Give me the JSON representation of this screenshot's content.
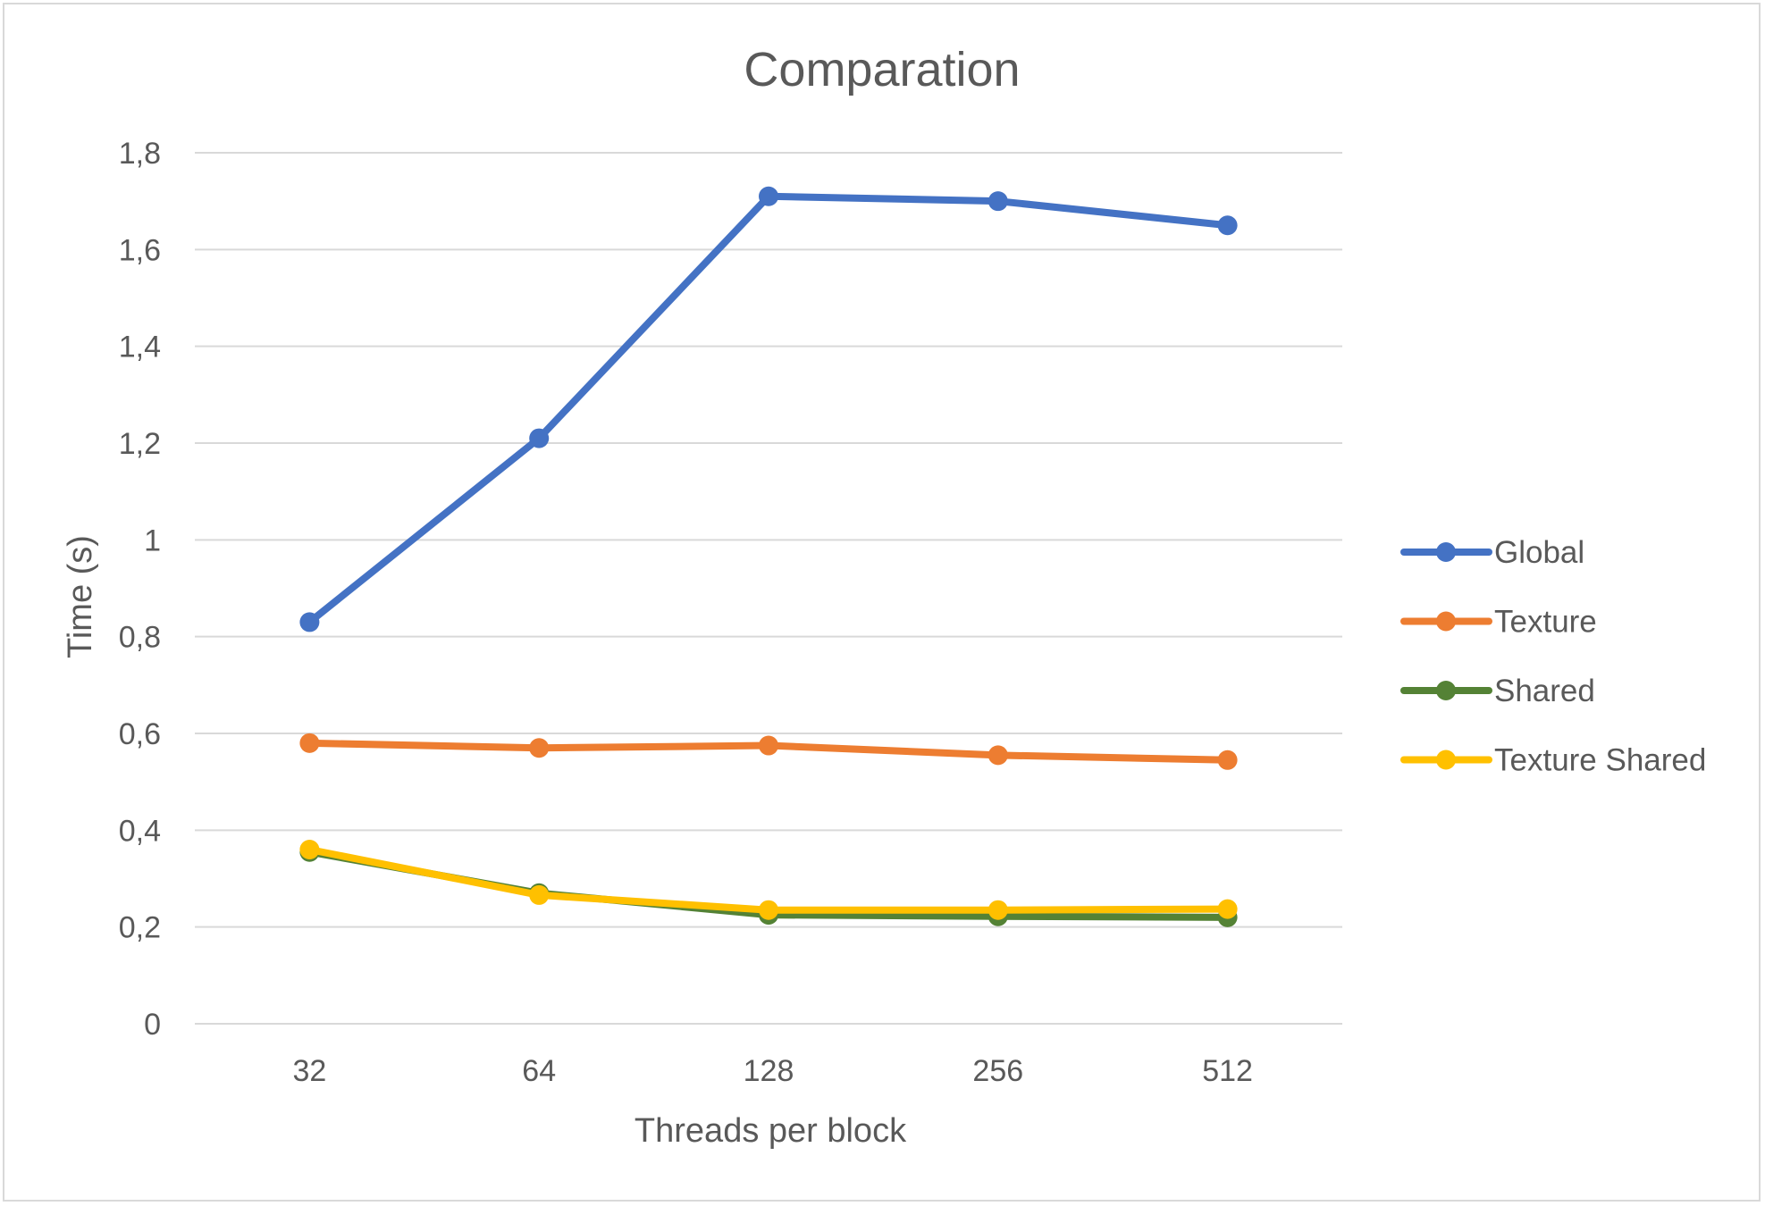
{
  "chart_data": {
    "type": "line",
    "title": "Comparation",
    "xlabel": "Threads per block",
    "ylabel": "Time (s)",
    "categories": [
      "32",
      "64",
      "128",
      "256",
      "512"
    ],
    "y_ticks": [
      "0",
      "0,2",
      "0,4",
      "0,6",
      "0,8",
      "1",
      "1,2",
      "1,4",
      "1,6",
      "1,8"
    ],
    "ylim": [
      0,
      1.8
    ],
    "grid": true,
    "legend_position": "right",
    "series": [
      {
        "name": "Global",
        "color": "#4472c4",
        "values": [
          0.83,
          1.21,
          1.71,
          1.7,
          1.65
        ]
      },
      {
        "name": "Texture",
        "color": "#ed7d31",
        "values": [
          0.58,
          0.57,
          0.575,
          0.555,
          0.545
        ]
      },
      {
        "name": "Shared",
        "color": "#548235",
        "values": [
          0.355,
          0.27,
          0.225,
          0.222,
          0.22
        ]
      },
      {
        "name": "Texture Shared",
        "color": "#ffc000",
        "values": [
          0.36,
          0.266,
          0.235,
          0.235,
          0.237
        ]
      }
    ]
  }
}
